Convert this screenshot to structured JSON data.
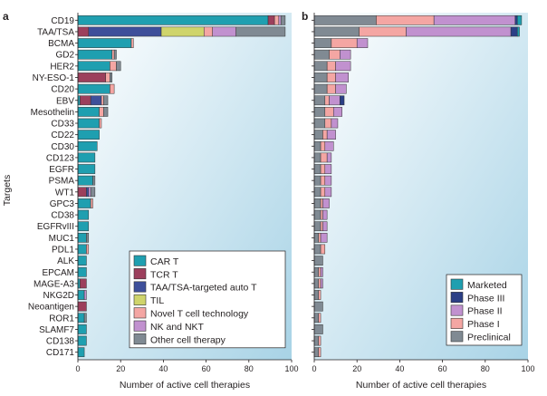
{
  "colors": {
    "CAR T": "#1f9fb0",
    "TCR T": "#9c3f5c",
    "TAA/TSA-targeted auto T": "#3e4f9a",
    "TIL": "#cfd46b",
    "Novel T cell technology": "#f4a6a3",
    "NK and NKT": "#c191cf",
    "Other cell therapy": "#808a93",
    "Marketed": "#1f9fb0",
    "Phase III": "#2b3f86",
    "Phase II": "#c191cf",
    "Phase I": "#f4a6a3",
    "Preclinical": "#808a93",
    "panel_gradient_light": "#ffffff",
    "panel_gradient_dark": "#a8d3e6"
  },
  "chart_data": [
    {
      "panel": "a",
      "type": "bar",
      "orientation": "horizontal",
      "stacked": true,
      "xlabel": "Number of active cell therapies",
      "ylabel": "Targets",
      "xlim": [
        0,
        100
      ],
      "xticks": [
        "0",
        "20",
        "40",
        "60",
        "80",
        "100"
      ],
      "legend_position": "bottom-right",
      "categories": [
        "CD19",
        "TAA/TSA",
        "BCMA",
        "GD2",
        "HER2",
        "NY-ESO-1",
        "CD20",
        "EBV",
        "Mesothelin",
        "CD33",
        "CD22",
        "CD30",
        "CD123",
        "EGFR",
        "PSMA",
        "WT1",
        "GPC3",
        "CD38",
        "EGFRvIII",
        "MUC1",
        "PDL1",
        "ALK",
        "EPCAM",
        "MAGE-A3",
        "NKG2D",
        "Neoantigen",
        "ROR1",
        "SLAMF7",
        "CD138",
        "CD171"
      ],
      "series": [
        {
          "name": "CAR T",
          "values": [
            89,
            0,
            25,
            16,
            15,
            0,
            15,
            1,
            10,
            10,
            10,
            9,
            8,
            8,
            7,
            0,
            6,
            5,
            5,
            4,
            4,
            4,
            4,
            1,
            3,
            0,
            3,
            4,
            4,
            3
          ]
        },
        {
          "name": "TCR T",
          "values": [
            3,
            5,
            0,
            0,
            0,
            13,
            0,
            5,
            0,
            0,
            0,
            0,
            0,
            0,
            0,
            4,
            0,
            0,
            0,
            0,
            0,
            0,
            0,
            3,
            0,
            4,
            0,
            0,
            0,
            0
          ]
        },
        {
          "name": "TAA/TSA-targeted auto T",
          "values": [
            0,
            34,
            0,
            0,
            0,
            0,
            0,
            5,
            0,
            0,
            0,
            0,
            0,
            0,
            0,
            1,
            0,
            0,
            0,
            0,
            0,
            0,
            0,
            0,
            0,
            0,
            0,
            0,
            0,
            0
          ]
        },
        {
          "name": "TIL",
          "values": [
            0,
            20,
            0,
            0,
            0,
            0,
            0,
            0,
            0,
            0,
            0,
            0,
            0,
            0,
            0,
            0,
            0,
            0,
            0,
            0,
            0,
            0,
            0,
            0,
            0,
            0,
            0,
            0,
            0,
            0
          ]
        },
        {
          "name": "Novel T cell technology",
          "values": [
            2,
            4,
            1,
            1,
            3,
            2,
            2,
            1,
            2,
            1,
            0,
            0,
            0,
            0,
            0,
            0,
            1,
            0,
            0,
            0,
            1,
            0,
            0,
            0,
            0,
            0,
            0,
            0,
            0,
            0
          ]
        },
        {
          "name": "NK and NKT",
          "values": [
            1,
            11,
            0,
            0,
            0,
            0,
            0,
            0,
            0,
            0,
            0,
            0,
            0,
            0,
            0,
            1,
            0,
            0,
            0,
            0,
            0,
            0,
            0,
            0,
            1,
            0,
            0,
            0,
            0,
            0
          ]
        },
        {
          "name": "Other cell therapy",
          "values": [
            2,
            23,
            0,
            1,
            2,
            1,
            0,
            2,
            2,
            0,
            0,
            0,
            0,
            0,
            1,
            2,
            0,
            0,
            0,
            1,
            0,
            0,
            0,
            0,
            0,
            0,
            1,
            0,
            0,
            0
          ]
        }
      ]
    },
    {
      "panel": "b",
      "type": "bar",
      "orientation": "horizontal",
      "stacked": true,
      "xlabel": "Number of active cell therapies",
      "xlim": [
        0,
        100
      ],
      "xticks": [
        "0",
        "20",
        "40",
        "60",
        "80",
        "100"
      ],
      "legend_position": "bottom-right",
      "categories": [
        "CD19",
        "TAA/TSA",
        "BCMA",
        "GD2",
        "HER2",
        "NY-ESO-1",
        "CD20",
        "EBV",
        "Mesothelin",
        "CD33",
        "CD22",
        "CD30",
        "CD123",
        "EGFR",
        "PSMA",
        "WT1",
        "GPC3",
        "CD38",
        "EGFRvIII",
        "MUC1",
        "PDL1",
        "ALK",
        "EPCAM",
        "MAGE-A3",
        "NKG2D",
        "Neoantigen",
        "ROR1",
        "SLAMF7",
        "CD138",
        "CD171"
      ],
      "series": [
        {
          "name": "Preclinical",
          "values": [
            29,
            21,
            8,
            7,
            6,
            6,
            6,
            5,
            5,
            5,
            4,
            3,
            3,
            3,
            3,
            3,
            3,
            3,
            3,
            2,
            3,
            4,
            2,
            2,
            2,
            4,
            2,
            4,
            2,
            2
          ]
        },
        {
          "name": "Phase I",
          "values": [
            27,
            22,
            12,
            5,
            4,
            4,
            4,
            2,
            4,
            3,
            2,
            2,
            3,
            2,
            2,
            2,
            1,
            1,
            1,
            1,
            2,
            0,
            1,
            1,
            1,
            0,
            1,
            0,
            1,
            1
          ]
        },
        {
          "name": "Phase II",
          "values": [
            38,
            49,
            5,
            5,
            7,
            6,
            5,
            5,
            4,
            3,
            4,
            4,
            2,
            3,
            3,
            3,
            3,
            2,
            2,
            3,
            0,
            0,
            1,
            1,
            0,
            0,
            0,
            0,
            0,
            0
          ]
        },
        {
          "name": "Phase III",
          "values": [
            1,
            3,
            0,
            0,
            0,
            0,
            0,
            2,
            0,
            0,
            0,
            0,
            0,
            0,
            0,
            0,
            0,
            0,
            0,
            0,
            0,
            0,
            0,
            0,
            0,
            0,
            0,
            0,
            0,
            0
          ]
        },
        {
          "name": "Marketed",
          "values": [
            2,
            1,
            0,
            0,
            0,
            0,
            0,
            0,
            0,
            0,
            0,
            0,
            0,
            0,
            0,
            0,
            0,
            0,
            0,
            0,
            0,
            0,
            0,
            0,
            0,
            0,
            0,
            0,
            0,
            0
          ]
        }
      ],
      "legend_order": [
        "Marketed",
        "Phase III",
        "Phase II",
        "Phase I",
        "Preclinical"
      ]
    }
  ]
}
